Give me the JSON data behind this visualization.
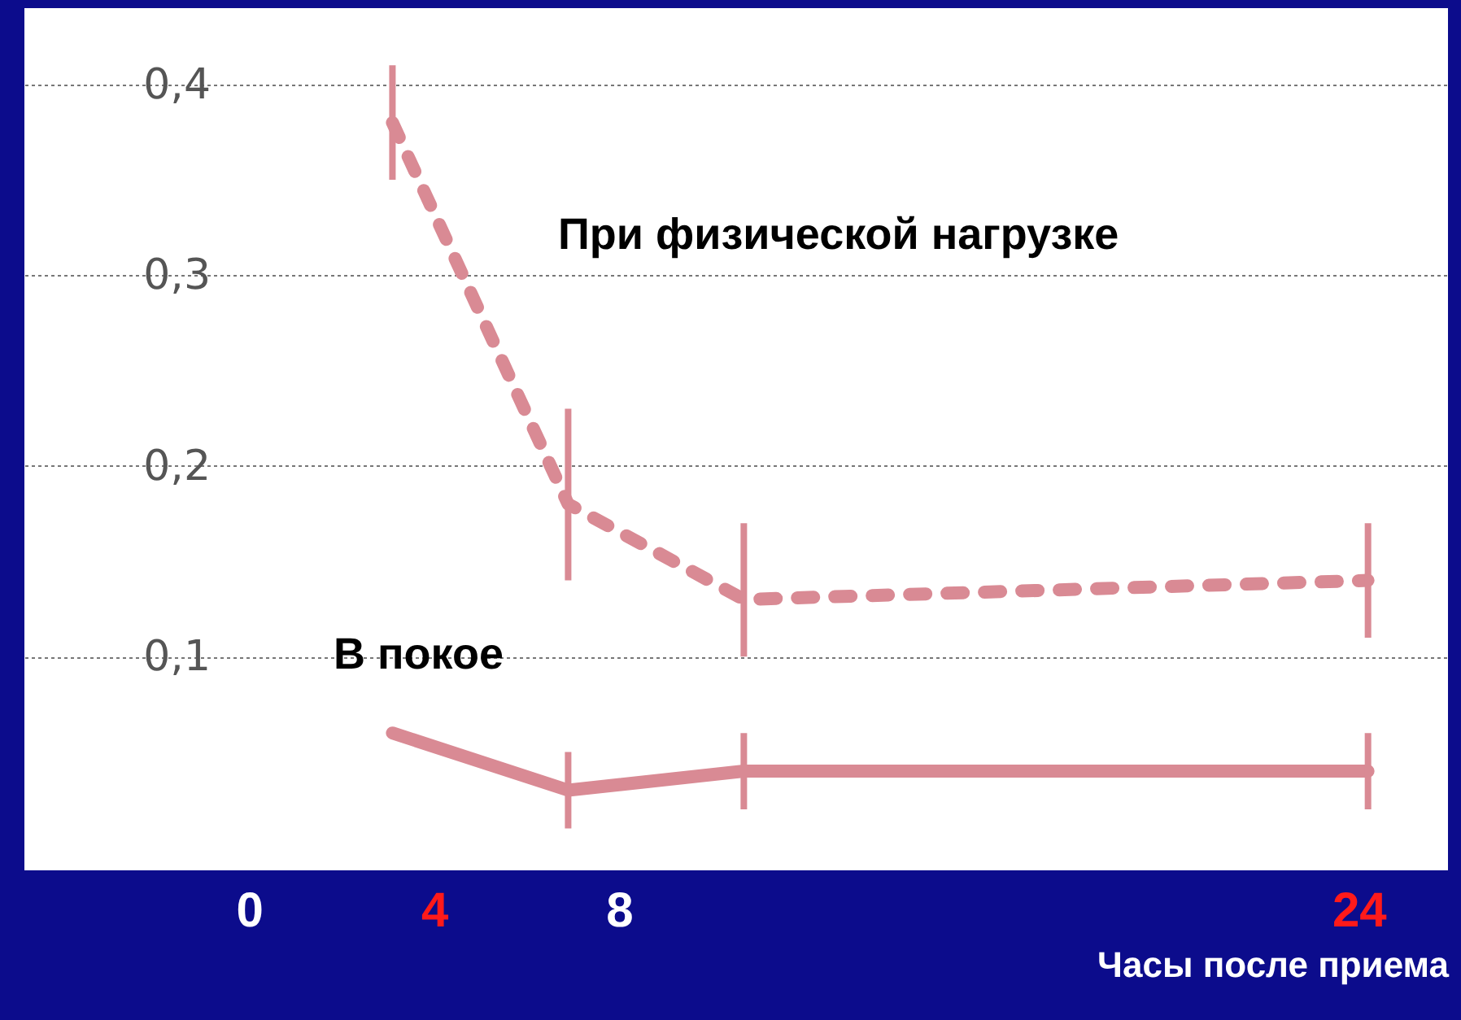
{
  "chart_data": {
    "type": "line",
    "xlabel": "Часы после приема",
    "x": [
      3.1,
      6.9,
      10.7,
      24.2
    ],
    "xlim": [
      -4.86,
      25.93
    ],
    "xticks": [
      0,
      4,
      8,
      24
    ],
    "ylim": [
      -0.012,
      0.44
    ],
    "yticks": [
      {
        "value": 0.1,
        "label": "0,1"
      },
      {
        "value": 0.2,
        "label": "0,2"
      },
      {
        "value": 0.3,
        "label": "0,3"
      },
      {
        "value": 0.4,
        "label": "0,4"
      }
    ],
    "grid": "y",
    "marker": "none",
    "series": [
      {
        "name": "При физической нагрузке",
        "color": "#d98a94",
        "line_style": "dashed",
        "values": [
          0.38,
          0.18,
          0.13,
          0.14
        ],
        "errors": [
          [
            0.35,
            0.41
          ],
          [
            0.14,
            0.23
          ],
          [
            0.1,
            0.17
          ],
          [
            0.11,
            0.17
          ]
        ]
      },
      {
        "name": "В покое",
        "color": "#d98a94",
        "line_style": "solid",
        "values": [
          0.06,
          0.03,
          0.04,
          0.04
        ],
        "errors": [
          null,
          [
            0.01,
            0.05
          ],
          [
            0.02,
            0.06
          ],
          [
            0.02,
            0.06
          ]
        ]
      }
    ]
  }
}
